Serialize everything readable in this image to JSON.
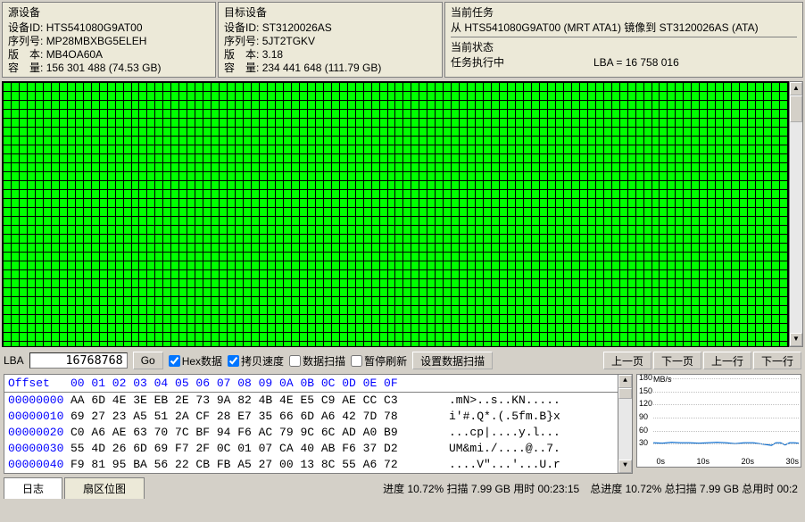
{
  "panels": {
    "source": {
      "title": "源设备",
      "device_id_label": "设备ID:",
      "device_id": "HTS541080G9AT00",
      "serial_label": "序列号:",
      "serial": "MP28MBXBG5ELEH",
      "fw_label": "版　本:",
      "fw": "MB4OA60A",
      "cap_label": "容　量:",
      "cap": "156 301 488 (74.53 GB)"
    },
    "target": {
      "title": "目标设备",
      "device_id_label": "设备ID:",
      "device_id": "ST3120026AS",
      "serial_label": "序列号:",
      "serial": "5JT2TGKV",
      "fw_label": "版　本:",
      "fw": "3.18",
      "cap_label": "容　量:",
      "cap": "234 441 648 (111.79 GB)"
    },
    "task": {
      "title": "当前任务",
      "text": "从 HTS541080G9AT00 (MRT ATA1) 镜像到 ST3120026AS (ATA)"
    },
    "state": {
      "title": "当前状态",
      "status": "任务执行中",
      "lba": "LBA = 16 758 016"
    }
  },
  "sector_map": {
    "rows": 32,
    "cols": 98,
    "color_ok": "#00ff00",
    "bg": "#000000"
  },
  "toolbar": {
    "lba_label": "LBA",
    "lba_value": "16768768",
    "go": "Go",
    "hex_data": "Hex数据",
    "copy_speed": "拷贝速度",
    "data_scan": "数据扫描",
    "pause_refresh": "暂停刷新",
    "set_data_scan": "设置数据扫描",
    "prev_page": "上一页",
    "next_page": "下一页",
    "prev_row": "上一行",
    "next_row": "下一行",
    "hex_checked": true,
    "copy_checked": true,
    "scan_checked": false,
    "pause_checked": false
  },
  "hex": {
    "header_offset": "Offset",
    "header_bytes": "00 01 02 03 04 05 06 07 08 09 0A 0B 0C 0D 0E 0F",
    "rows": [
      {
        "off": "00000000",
        "b": "AA 6D 4E 3E EB 2E 73 9A 82 4B 4E E5 C9 AE CC C3",
        "a": ".mN>..s..KN....."
      },
      {
        "off": "00000010",
        "b": "69 27 23 A5 51 2A CF 28 E7 35 66 6D A6 42 7D 78",
        "a": "i'#.Q*.(.5fm.B}x"
      },
      {
        "off": "00000020",
        "b": "C0 A6 AE 63 70 7C BF 94 F6 AC 79 9C 6C AD A0 B9",
        "a": "...cp|....y.l..."
      },
      {
        "off": "00000030",
        "b": "55 4D 26 6D 69 F7 2F 0C 01 07 CA 40 AB F6 37 D2",
        "a": "UM&mi./....@..7."
      },
      {
        "off": "00000040",
        "b": "F9 81 95 BA 56 22 CB FB A5 27 00 13 8C 55 A6 72",
        "a": "....V\"...'...U.r"
      }
    ]
  },
  "chart": {
    "title": "MB/s",
    "ymax": 180,
    "ytick": 30,
    "yticks": [
      "180",
      "150",
      "120",
      "90",
      "60",
      "30"
    ],
    "xticks": [
      "30s",
      "20s",
      "10s",
      "0s"
    ],
    "series_color": "#0066cc",
    "bg": "#ffffff",
    "grid": "#c0c0c0",
    "series_y": 30,
    "points": [
      [
        0,
        30
      ],
      [
        10,
        29
      ],
      [
        20,
        31
      ],
      [
        30,
        30
      ],
      [
        40,
        30
      ],
      [
        50,
        29
      ],
      [
        60,
        30
      ],
      [
        70,
        31
      ],
      [
        80,
        30
      ],
      [
        90,
        28
      ],
      [
        100,
        30
      ],
      [
        110,
        30
      ],
      [
        120,
        27
      ],
      [
        130,
        24
      ],
      [
        135,
        30
      ],
      [
        140,
        30
      ],
      [
        145,
        25
      ],
      [
        150,
        30
      ],
      [
        155,
        30
      ],
      [
        160,
        29
      ]
    ]
  },
  "tabs": {
    "log": "日志",
    "sector": "扇区位图"
  },
  "status": "进度 10.72% 扫描 7.99 GB 用时 00:23:15　总进度 10.72% 总扫描 7.99 GB 总用时 00:2"
}
